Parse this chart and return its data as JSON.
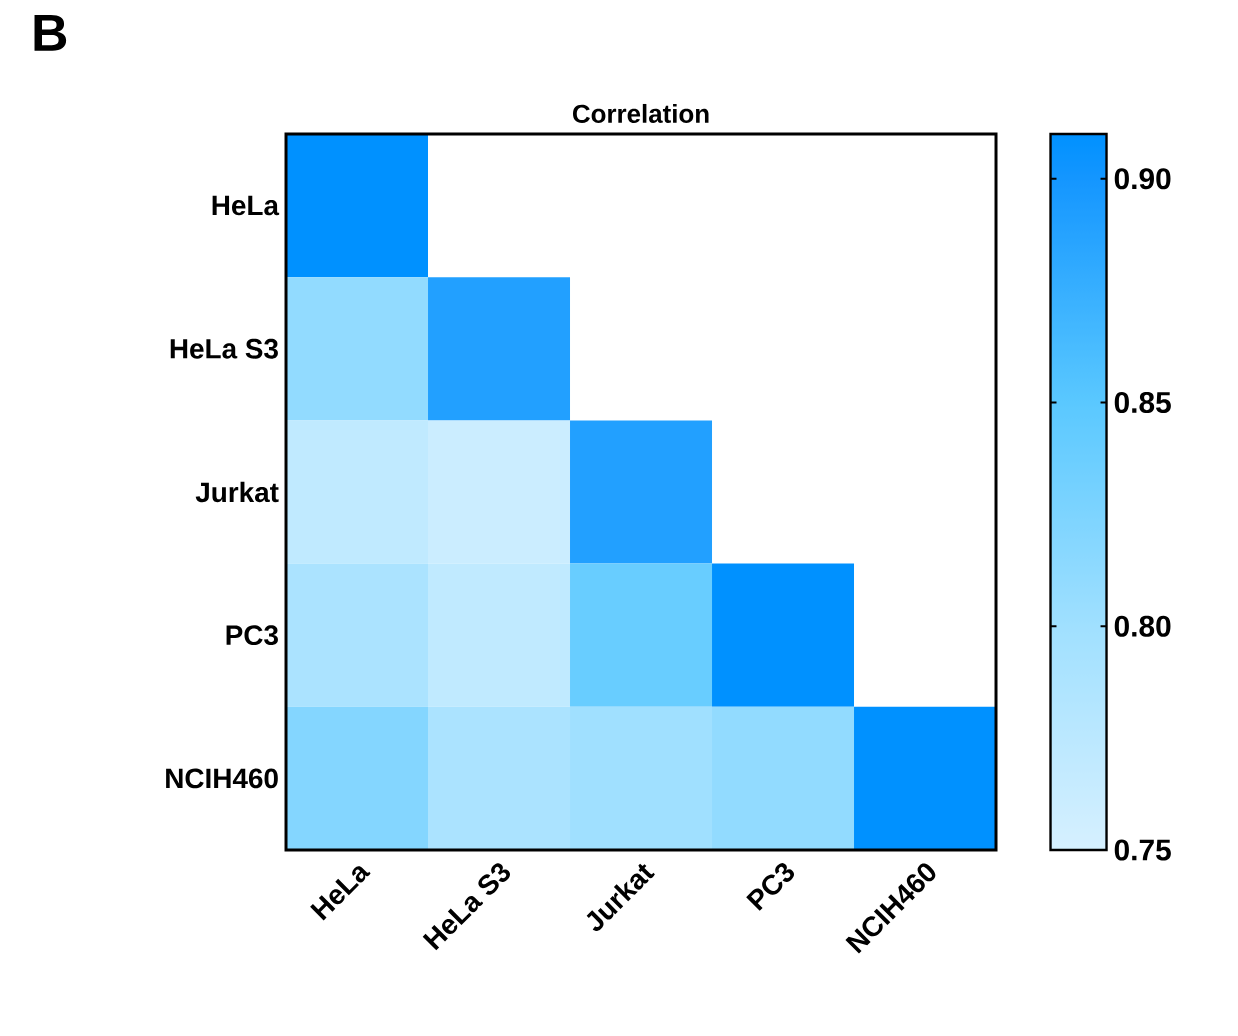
{
  "chart_data": {
    "type": "heatmap",
    "title": "Correlation",
    "categories": [
      "HeLa",
      "HeLa S3",
      "Jurkat",
      "PC3",
      "NCIH460"
    ],
    "y_categories": [
      "HeLa",
      "HeLa S3",
      "Jurkat",
      "PC3",
      "NCIH460"
    ],
    "cells": [
      [
        0.91,
        null,
        null,
        null,
        null
      ],
      [
        0.81,
        0.89,
        null,
        null,
        null
      ],
      [
        0.77,
        0.76,
        0.89,
        null,
        null
      ],
      [
        0.79,
        0.77,
        0.84,
        0.91,
        null
      ],
      [
        0.82,
        0.79,
        0.8,
        0.81,
        0.91
      ]
    ],
    "clim": [
      0.75,
      0.91
    ],
    "cticks": [
      {
        "value": 0.75,
        "label": "0.75"
      },
      {
        "value": 0.8,
        "label": "0.80"
      },
      {
        "value": 0.85,
        "label": "0.85"
      },
      {
        "value": 0.9,
        "label": "0.90"
      }
    ],
    "annotations": [
      "B"
    ]
  }
}
